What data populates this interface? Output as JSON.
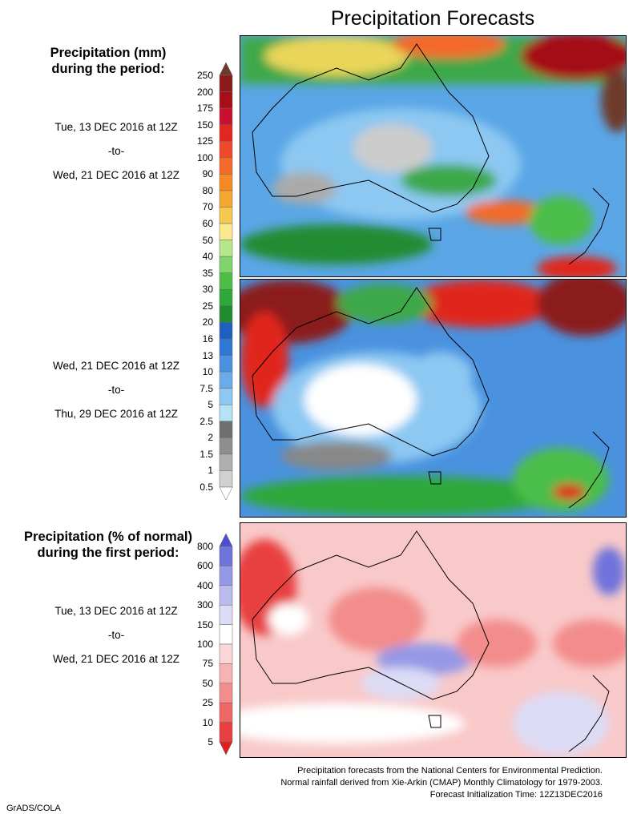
{
  "title": "Precipitation Forecasts",
  "panels": {
    "mm": {
      "heading_line1": "Precipitation (mm)",
      "heading_line2": "during the period:"
    },
    "pct": {
      "heading_line1": "Precipitation (% of normal)",
      "heading_line2": "during the first period:"
    }
  },
  "periods": {
    "first": {
      "start": "Tue, 13 DEC 2016 at 12Z",
      "sep": "-to-",
      "end": "Wed, 21 DEC 2016 at 12Z"
    },
    "second": {
      "start": "Wed, 21 DEC 2016 at 12Z",
      "sep": "-to-",
      "end": "Thu, 29 DEC 2016 at 12Z"
    },
    "pct": {
      "start": "Tue, 13 DEC 2016 at 12Z",
      "sep": "-to-",
      "end": "Wed, 21 DEC 2016 at 12Z"
    }
  },
  "colorbar_mm": {
    "labels": [
      "250",
      "200",
      "175",
      "150",
      "125",
      "100",
      "90",
      "80",
      "70",
      "60",
      "50",
      "40",
      "35",
      "30",
      "25",
      "20",
      "16",
      "13",
      "10",
      "7.5",
      "5",
      "2.5",
      "2",
      "1.5",
      "1",
      "0.5"
    ],
    "colors": [
      "#6e3b2a",
      "#8b1a1a",
      "#a50f15",
      "#c8102e",
      "#e0281e",
      "#f0482a",
      "#f36a2a",
      "#f58a25",
      "#f6a733",
      "#f7c84e",
      "#fae98c",
      "#b5e68a",
      "#7fd46a",
      "#4cbe48",
      "#2ea83a",
      "#208c30",
      "#1f5fc0",
      "#2c78d4",
      "#4a92df",
      "#6aacea",
      "#8cc8f2",
      "#b4e3f8",
      "#6f6f6f",
      "#8e8e8e",
      "#afafaf",
      "#d0d0d0",
      "#ffffff"
    ]
  },
  "colorbar_pct": {
    "labels": [
      "800",
      "600",
      "400",
      "300",
      "150",
      "100",
      "75",
      "50",
      "25",
      "10",
      "5"
    ],
    "colors": [
      "#4a4fd0",
      "#6f73dc",
      "#9598e6",
      "#babcf0",
      "#dcdcf6",
      "#ffffff",
      "#fbd6d6",
      "#f7b2b2",
      "#f38c8c",
      "#ee6666",
      "#e84040",
      "#e02020"
    ]
  },
  "footer": {
    "line1": "Precipitation forecasts from the National Centers for Environmental Prediction.",
    "line2": "Normal rainfall derived from Xie-Arkin (CMAP) Monthly Climatology for 1979-2003.",
    "line3": "Forecast Initialization Time: 12Z13DEC2016"
  },
  "credit": "GrADS/COLA"
}
